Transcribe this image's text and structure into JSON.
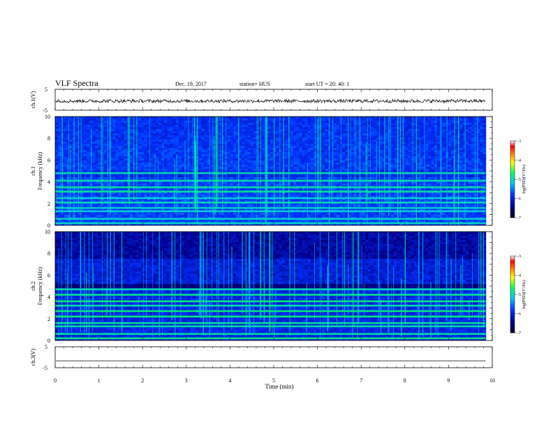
{
  "header": {
    "title": "VLF Spectra",
    "date": "Dec. 19, 2017",
    "station": "station= HUS",
    "start": "start  UT =   20: 40: 1"
  },
  "chart_data": [
    {
      "type": "line",
      "name": "ch1-waveform",
      "ylabel": "ch.1(V)",
      "ylim": [
        -5,
        5
      ],
      "yticks": [
        5,
        -5
      ],
      "xlim": [
        0,
        10
      ],
      "summary": "noisy signal around -0.6 V spanning 0 to 9.85 min"
    },
    {
      "type": "heatmap",
      "name": "ch1-spectrogram",
      "ylabel_top": "ch.1",
      "ylabel": "Frequency  (kHz)",
      "ylim": [
        0,
        10
      ],
      "yticks": [
        0,
        2,
        4,
        6,
        8,
        10
      ],
      "xlim": [
        0,
        10
      ],
      "data_extent_min": 9.85,
      "bands_khz": [
        0.2,
        0.6,
        1.3,
        1.6,
        2.1,
        2.5,
        3.1,
        3.5,
        4.1,
        4.8
      ],
      "colorbar": {
        "label": "log(PSD)(V²/Hz)",
        "ticks": [
          -3,
          -4,
          -5,
          -6,
          -7
        ]
      }
    },
    {
      "type": "heatmap",
      "name": "ch2-spectrogram",
      "ylabel_top": "ch.2",
      "ylabel": "Frequency  (kHz)",
      "ylim": [
        0,
        10
      ],
      "yticks": [
        0,
        2,
        4,
        6,
        8,
        10
      ],
      "xlim": [
        0,
        10
      ],
      "data_extent_min": 9.85,
      "bands_khz": [
        0.2,
        0.6,
        1.3,
        1.6,
        2.2,
        2.7,
        3.2,
        3.6,
        4.2,
        4.7
      ],
      "colorbar": {
        "label": "log(PSD)(V²/Hz)",
        "ticks": [
          -3,
          -4,
          -5,
          -6,
          -7
        ]
      }
    },
    {
      "type": "line",
      "name": "ch3-waveform",
      "ylabel": "ch.3(V)",
      "ylim": [
        -5,
        5
      ],
      "yticks": [
        5,
        -5
      ],
      "xlim": [
        0,
        10
      ],
      "summary": "flat line near -1.7 V spanning 0 to 9.85 min"
    }
  ],
  "xaxis": {
    "label": "Time  (min)",
    "ticks": [
      "0",
      "1",
      "2",
      "3",
      "4",
      "5",
      "6",
      "7",
      "8",
      "9",
      "10"
    ]
  },
  "colors": {
    "ink": "#000000",
    "colormap": [
      "#000033",
      "#00008b",
      "#0033ff",
      "#00c8ff",
      "#00ff66",
      "#ffff00",
      "#ff8800",
      "#ff0000",
      "#ffffff"
    ]
  }
}
